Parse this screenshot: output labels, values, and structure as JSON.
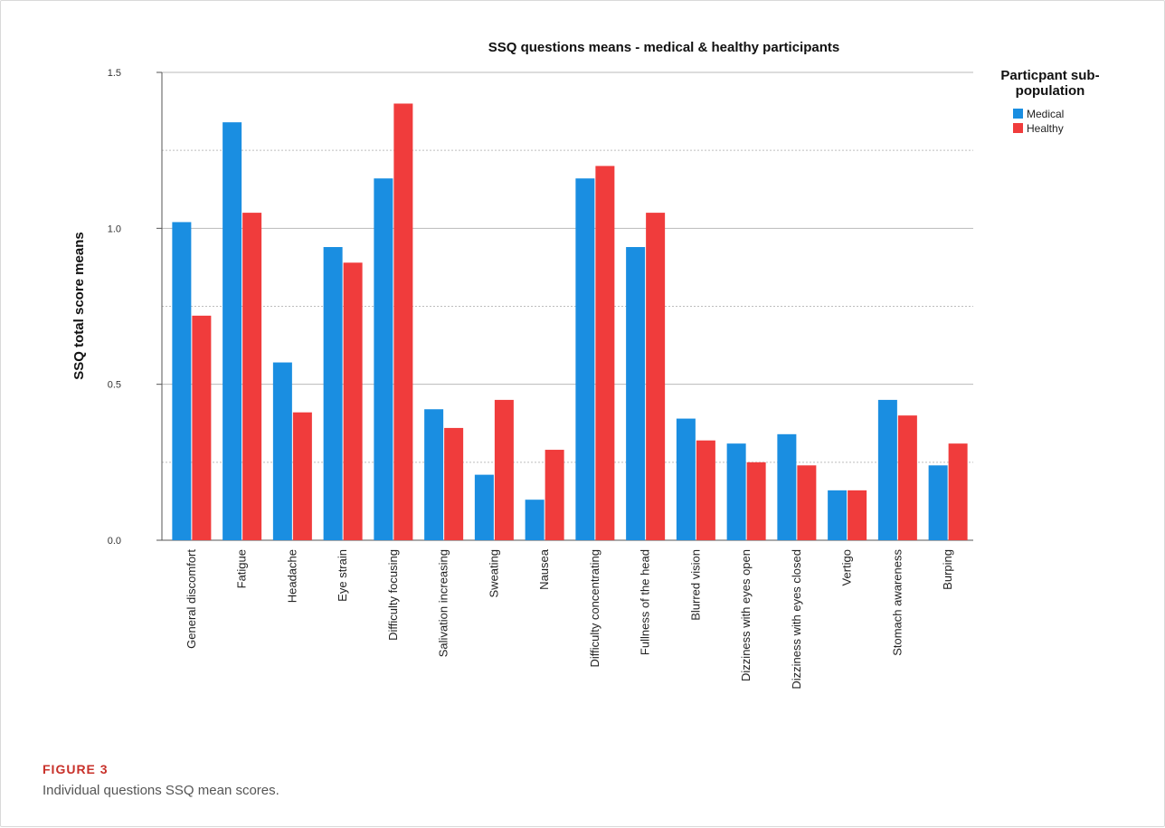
{
  "figure": {
    "label": "FIGURE 3",
    "caption": "Individual questions SSQ mean scores."
  },
  "chart_data": {
    "type": "bar",
    "title": "SSQ questions means - medical & healthy participants",
    "xlabel": "",
    "ylabel": "SSQ total score means",
    "ylim": [
      0,
      1.5
    ],
    "yticks": [
      "0.0",
      "0.5",
      "1.0",
      "1.5"
    ],
    "grid": "horizontal (solid at labeled ticks, dotted at midpoints)",
    "legend": {
      "title_lines": [
        "Particpant sub-",
        "population"
      ],
      "placement": "top-right, outside plot"
    },
    "categories": [
      "General discomfort",
      "Fatigue",
      "Headache",
      "Eye strain",
      "Difficulty focusing",
      "Salivation increasing",
      "Sweating",
      "Nausea",
      "Difficulty concentrating",
      "Fullness of the head",
      "Blurred vision",
      "Dizziness with eyes open",
      "Dizziness with eyes closed",
      "Vertigo",
      "Stomach awareness",
      "Burping"
    ],
    "series": [
      {
        "name": "Medical",
        "color": "#1a8ee1",
        "values": [
          1.02,
          1.34,
          0.57,
          0.94,
          1.16,
          0.42,
          0.21,
          0.13,
          1.16,
          0.94,
          0.39,
          0.31,
          0.34,
          0.16,
          0.45,
          0.24
        ]
      },
      {
        "name": "Healthy",
        "color": "#f03c3c",
        "values": [
          0.72,
          1.05,
          0.41,
          0.89,
          1.4,
          0.36,
          0.45,
          0.29,
          1.2,
          1.05,
          0.32,
          0.25,
          0.24,
          0.16,
          0.4,
          0.31
        ]
      }
    ]
  }
}
